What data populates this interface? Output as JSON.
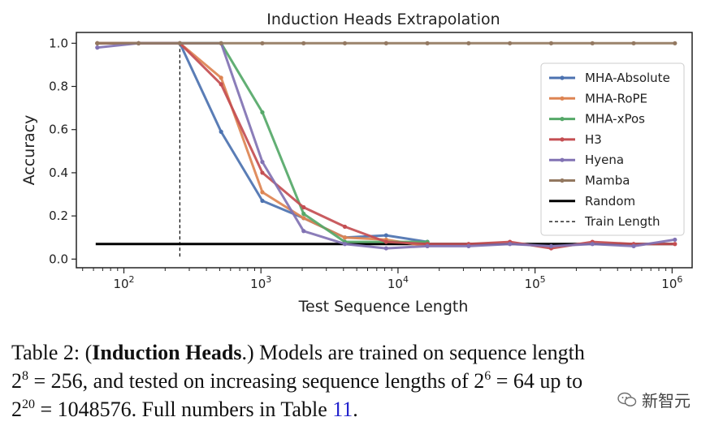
{
  "chart_data": {
    "type": "line",
    "title": "Induction Heads Extrapolation",
    "xlabel": "Test Sequence Length",
    "ylabel": "Accuracy",
    "x_scale": "log",
    "xlim": [
      45,
      1400000
    ],
    "ylim": [
      -0.04,
      1.05
    ],
    "x_ticks": [
      {
        "value": 100,
        "base": "10",
        "exp": "2"
      },
      {
        "value": 1000,
        "base": "10",
        "exp": "3"
      },
      {
        "value": 10000,
        "base": "10",
        "exp": "4"
      },
      {
        "value": 100000,
        "base": "10",
        "exp": "5"
      },
      {
        "value": 1000000,
        "base": "10",
        "exp": "6"
      }
    ],
    "y_ticks": [
      {
        "value": 0.0,
        "label": "0.0"
      },
      {
        "value": 0.2,
        "label": "0.2"
      },
      {
        "value": 0.4,
        "label": "0.4"
      },
      {
        "value": 0.6,
        "label": "0.6"
      },
      {
        "value": 0.8,
        "label": "0.8"
      },
      {
        "value": 1.0,
        "label": "1.0"
      }
    ],
    "x": [
      64,
      128,
      256,
      512,
      1024,
      2048,
      4096,
      8192,
      16384,
      32768,
      65536,
      131072,
      262144,
      524288,
      1048576
    ],
    "series": [
      {
        "name": "MHA-Absolute",
        "color": "#4C72B0",
        "values": [
          1.0,
          1.0,
          1.0,
          0.59,
          0.27,
          0.19,
          0.1,
          0.11,
          0.08,
          null,
          null,
          null,
          null,
          null,
          null
        ]
      },
      {
        "name": "MHA-RoPE",
        "color": "#DD8452",
        "values": [
          1.0,
          1.0,
          1.0,
          0.84,
          0.31,
          0.19,
          0.1,
          0.09,
          0.06,
          null,
          null,
          null,
          null,
          null,
          null
        ]
      },
      {
        "name": "MHA-xPos",
        "color": "#55A868",
        "values": [
          1.0,
          1.0,
          1.0,
          1.0,
          0.68,
          0.21,
          0.08,
          0.08,
          0.08,
          null,
          null,
          null,
          null,
          null,
          null
        ]
      },
      {
        "name": "H3",
        "color": "#C44E52",
        "values": [
          1.0,
          1.0,
          1.0,
          0.81,
          0.4,
          0.24,
          0.15,
          0.08,
          0.07,
          0.07,
          0.08,
          0.05,
          0.08,
          0.07,
          0.07
        ]
      },
      {
        "name": "Hyena",
        "color": "#8172B3",
        "values": [
          0.98,
          1.0,
          1.0,
          1.0,
          0.45,
          0.13,
          0.07,
          0.05,
          0.06,
          0.06,
          0.07,
          0.06,
          0.07,
          0.06,
          0.09
        ]
      },
      {
        "name": "Mamba",
        "color": "#937860",
        "values": [
          1.0,
          1.0,
          1.0,
          1.0,
          1.0,
          1.0,
          1.0,
          1.0,
          1.0,
          1.0,
          1.0,
          1.0,
          1.0,
          1.0,
          1.0
        ]
      }
    ],
    "reference_lines": [
      {
        "name": "Random",
        "orientation": "horizontal",
        "value": 0.07,
        "color": "#000000",
        "style": "solid"
      },
      {
        "name": "Train Length",
        "orientation": "vertical",
        "value": 256,
        "color": "#000000",
        "style": "dashed"
      }
    ],
    "grid": false,
    "legend_position": "right"
  },
  "caption": {
    "prefix": "Table 2: (",
    "bold": "Induction Heads",
    "line1_rest": ".)  Models are trained on sequence length",
    "l2_base1": "2",
    "l2_exp1": "8",
    "l2_mid": " = 256, and tested on increasing sequence lengths of 2",
    "l2_exp2": "6",
    "l2_end": " = 64 up to",
    "l3_base": "2",
    "l3_exp": "20",
    "l3_mid": " = 1048576. Full numbers in Table ",
    "l3_ref": "11",
    "l3_end": "."
  },
  "watermark": {
    "text": "新智元",
    "icon": "wechat-icon"
  }
}
